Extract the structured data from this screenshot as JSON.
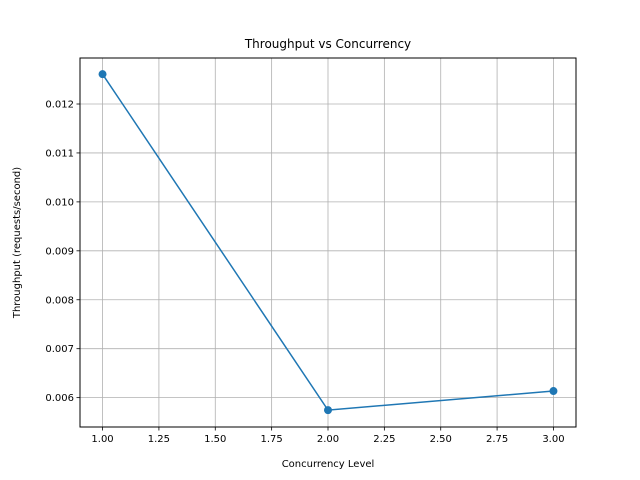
{
  "chart_data": {
    "type": "line",
    "title": "Throughput vs Concurrency",
    "xlabel": "Concurrency Level",
    "ylabel": "Throughput (requests/second)",
    "x": [
      1.0,
      2.0,
      3.0
    ],
    "series": [
      {
        "values": [
          0.01261,
          0.005745,
          0.006135
        ],
        "color": "#1f77b4",
        "marker": "circle"
      }
    ],
    "xlim": [
      0.9,
      3.1
    ],
    "ylim": [
      0.0054,
      0.01294
    ],
    "xticks": [
      1.0,
      1.25,
      1.5,
      1.75,
      2.0,
      2.25,
      2.5,
      2.75,
      3.0
    ],
    "xtick_labels": [
      "1.00",
      "1.25",
      "1.50",
      "1.75",
      "2.00",
      "2.25",
      "2.50",
      "2.75",
      "3.00"
    ],
    "yticks": [
      0.006,
      0.007,
      0.008,
      0.009,
      0.01,
      0.011,
      0.012
    ],
    "ytick_labels": [
      "0.006",
      "0.007",
      "0.008",
      "0.009",
      "0.010",
      "0.011",
      "0.012"
    ],
    "grid": true,
    "legend": false
  }
}
